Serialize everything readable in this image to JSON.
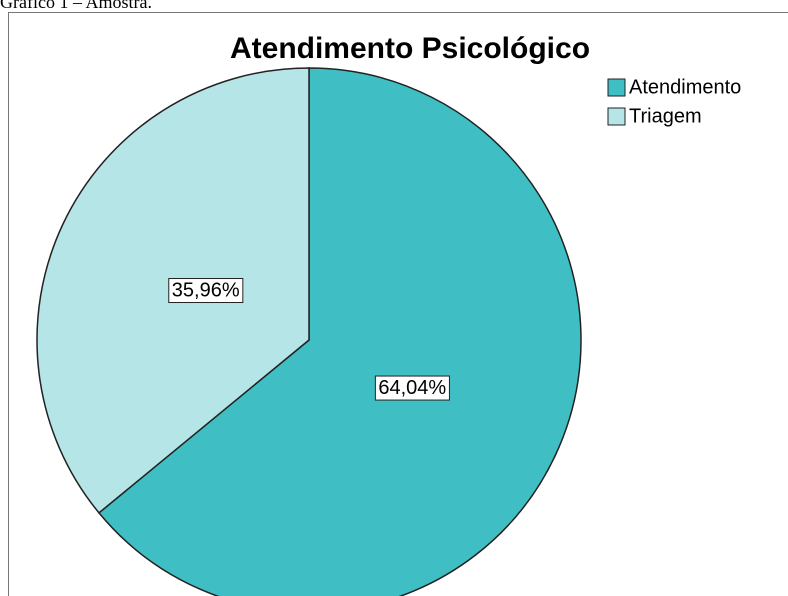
{
  "caption": "Gráfico 1 – Amostra.",
  "chart_data": {
    "type": "pie",
    "title": "Atendimento Psicológico",
    "categories": [
      "Atendimento",
      "Triagem"
    ],
    "values": [
      64.04,
      35.96
    ],
    "value_labels": [
      "64,04%",
      "35,96%"
    ],
    "colors": [
      "#3fbfc4",
      "#b5e5e7"
    ],
    "legend": "top-right"
  }
}
